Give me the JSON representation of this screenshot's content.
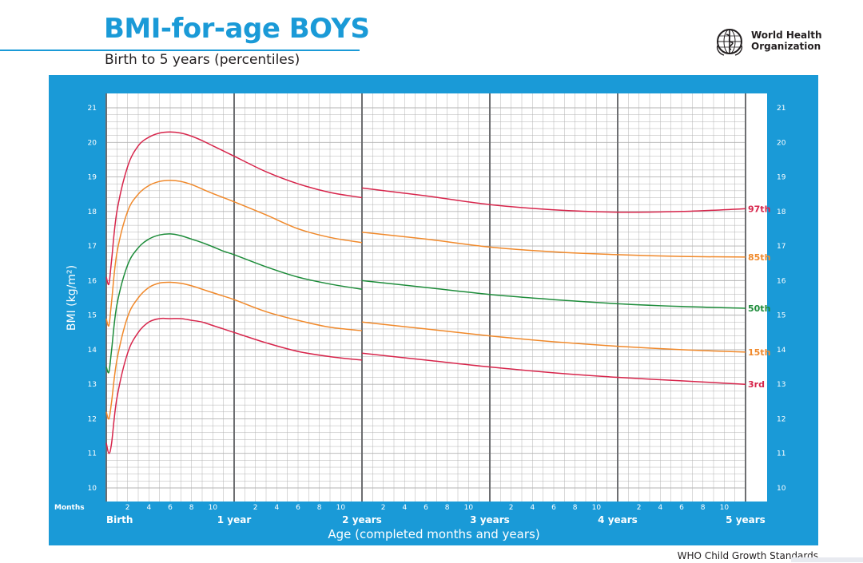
{
  "header": {
    "title": "BMI-for-age BOYS",
    "subtitle": "Birth to 5 years (percentiles)",
    "org_line1": "World Health",
    "org_line2": "Organization"
  },
  "footer": {
    "note": "WHO Child Growth Standards"
  },
  "colors": {
    "panel": "#1a9ad7",
    "grid": "#b3b3b3",
    "divider": "#6d6e71",
    "red": "#d7254b",
    "orange": "#f0892b",
    "green": "#1d8c3a"
  },
  "chart_data": {
    "type": "line",
    "title": "BMI-for-age BOYS",
    "subtitle": "Birth to 5 years (percentiles)",
    "xlabel": "Age (completed months and years)",
    "ylabel": "BMI (kg/m²)",
    "x_unit_label": "Months",
    "x_unit": "months",
    "xlim": [
      0,
      60
    ],
    "ylim": [
      10,
      21
    ],
    "y_ticks": [
      10,
      11,
      12,
      13,
      14,
      15,
      16,
      17,
      18,
      19,
      20,
      21
    ],
    "month_tick_labels": [
      "2",
      "4",
      "6",
      "8",
      "10"
    ],
    "year_tick_labels": [
      "Birth",
      "1 year",
      "2 years",
      "3 years",
      "4 years",
      "5 years"
    ],
    "grid": true,
    "legend": "inline at right end of curves",
    "series": [
      {
        "name": "3rd",
        "color": "#d7254b",
        "segments": [
          {
            "x": [
              0,
              0.25,
              0.5,
              1,
              2,
              3,
              4,
              5,
              6,
              7,
              8,
              9,
              10,
              11,
              12,
              15,
              18,
              21,
              24
            ],
            "y": [
              11.3,
              11.0,
              11.3,
              12.6,
              13.9,
              14.5,
              14.8,
              14.9,
              14.9,
              14.9,
              14.85,
              14.8,
              14.7,
              14.6,
              14.5,
              14.2,
              13.95,
              13.8,
              13.7
            ]
          },
          {
            "x": [
              24,
              30,
              36,
              42,
              48,
              54,
              60
            ],
            "y": [
              13.9,
              13.7,
              13.5,
              13.33,
              13.2,
              13.1,
              13.0
            ]
          }
        ]
      },
      {
        "name": "15th",
        "color": "#f0892b",
        "segments": [
          {
            "x": [
              0,
              0.25,
              0.5,
              1,
              2,
              3,
              4,
              5,
              6,
              7,
              8,
              9,
              10,
              11,
              12,
              15,
              18,
              21,
              24
            ],
            "y": [
              12.2,
              12.0,
              12.5,
              13.7,
              14.95,
              15.5,
              15.8,
              15.93,
              15.95,
              15.92,
              15.85,
              15.75,
              15.65,
              15.55,
              15.45,
              15.1,
              14.85,
              14.65,
              14.55
            ]
          },
          {
            "x": [
              24,
              30,
              36,
              42,
              48,
              54,
              60
            ],
            "y": [
              14.8,
              14.6,
              14.4,
              14.23,
              14.1,
              14.0,
              13.93
            ]
          }
        ]
      },
      {
        "name": "50th",
        "color": "#1d8c3a",
        "segments": [
          {
            "x": [
              0,
              0.25,
              0.5,
              1,
              2,
              3,
              4,
              5,
              6,
              7,
              8,
              9,
              10,
              11,
              12,
              15,
              18,
              21,
              24
            ],
            "y": [
              13.5,
              13.35,
              14.0,
              15.3,
              16.45,
              16.95,
              17.2,
              17.32,
              17.35,
              17.3,
              17.2,
              17.1,
              16.98,
              16.85,
              16.75,
              16.4,
              16.1,
              15.9,
              15.75
            ]
          },
          {
            "x": [
              24,
              30,
              36,
              42,
              48,
              54,
              60
            ],
            "y": [
              16.0,
              15.8,
              15.6,
              15.45,
              15.33,
              15.25,
              15.2
            ]
          }
        ]
      },
      {
        "name": "85th",
        "color": "#f0892b",
        "segments": [
          {
            "x": [
              0,
              0.25,
              0.5,
              1,
              2,
              3,
              4,
              5,
              6,
              7,
              8,
              9,
              10,
              11,
              12,
              15,
              18,
              21,
              24
            ],
            "y": [
              14.9,
              14.7,
              15.4,
              16.8,
              18.0,
              18.5,
              18.75,
              18.87,
              18.9,
              18.87,
              18.78,
              18.65,
              18.52,
              18.4,
              18.28,
              17.9,
              17.5,
              17.25,
              17.1
            ]
          },
          {
            "x": [
              24,
              30,
              36,
              42,
              48,
              54,
              60
            ],
            "y": [
              17.4,
              17.2,
              16.97,
              16.83,
              16.75,
              16.7,
              16.68
            ]
          }
        ]
      },
      {
        "name": "97th",
        "color": "#d7254b",
        "segments": [
          {
            "x": [
              0,
              0.25,
              0.5,
              1,
              2,
              3,
              4,
              5,
              6,
              7,
              8,
              9,
              10,
              11,
              12,
              15,
              18,
              21,
              24
            ],
            "y": [
              16.1,
              15.9,
              16.6,
              18.0,
              19.3,
              19.9,
              20.15,
              20.27,
              20.3,
              20.27,
              20.18,
              20.05,
              19.9,
              19.75,
              19.6,
              19.15,
              18.8,
              18.55,
              18.4
            ]
          },
          {
            "x": [
              24,
              30,
              36,
              42,
              48,
              54,
              60
            ],
            "y": [
              18.68,
              18.45,
              18.2,
              18.05,
              17.98,
              18.0,
              18.08
            ]
          }
        ]
      }
    ]
  }
}
